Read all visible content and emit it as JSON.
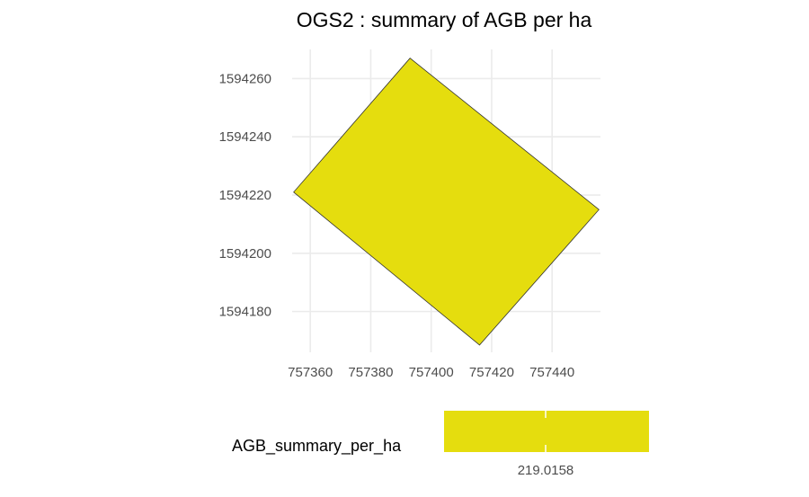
{
  "chart_data": {
    "type": "map",
    "title": "OGS2 : summary of AGB per ha",
    "xlabel": "",
    "ylabel": "",
    "x_ticks": [
      757360,
      757380,
      757400,
      757420,
      757440
    ],
    "y_ticks": [
      1594180,
      1594200,
      1594220,
      1594240,
      1594260
    ],
    "xlim": [
      757354,
      757456
    ],
    "ylim": [
      1594166,
      1594270
    ],
    "grid": true,
    "polygon": {
      "fill": "#e5dd0e",
      "stroke": "#333333",
      "points": [
        {
          "x": 757393,
          "y": 1594267
        },
        {
          "x": 757455.5,
          "y": 1594215
        },
        {
          "x": 757416,
          "y": 1594168.5
        },
        {
          "x": 757354.5,
          "y": 1594221
        }
      ]
    },
    "legend": {
      "title": "AGB_summary_per_ha",
      "position": "bottom",
      "value_label": "219.0158",
      "color": "#e5dd0e"
    }
  }
}
